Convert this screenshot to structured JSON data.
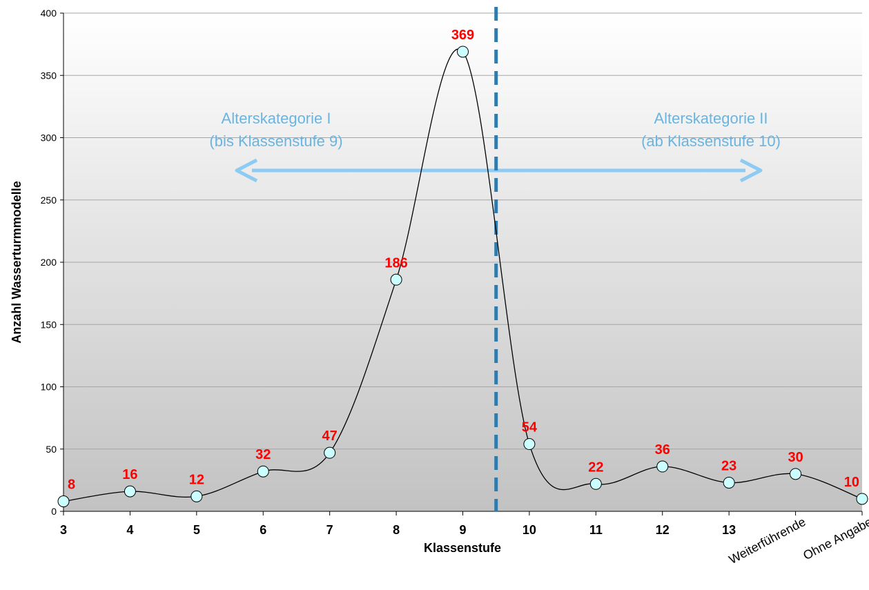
{
  "chart_data": {
    "type": "line",
    "smooth": true,
    "categories": [
      "3",
      "4",
      "5",
      "6",
      "7",
      "8",
      "9",
      "10",
      "11",
      "12",
      "13",
      "Weiterführende",
      "Ohne Angabe"
    ],
    "values": [
      8,
      16,
      12,
      32,
      47,
      186,
      369,
      54,
      22,
      36,
      23,
      30,
      10
    ],
    "data_labels": [
      "8",
      "16",
      "12",
      "32",
      "47",
      "186",
      "369",
      "54",
      "22",
      "36",
      "23",
      "30",
      "10"
    ],
    "xlabel": "Klassenstufe",
    "ylabel": "Anzahl Wasserturmmodelle",
    "ylim": [
      0,
      400
    ],
    "yticks": [
      0,
      50,
      100,
      150,
      200,
      250,
      300,
      350,
      400
    ],
    "ytick_labels": [
      "0",
      "50",
      "100",
      "150",
      "200",
      "250",
      "300",
      "350",
      "400"
    ],
    "grid": true,
    "divider_after_category": "9",
    "annotations": {
      "left": {
        "line1": "Alterskategorie I",
        "line2": "(bis Klassenstufe 9)"
      },
      "right": {
        "line1": "Alterskategorie II",
        "line2": "(ab Klassenstufe 10)"
      }
    },
    "colors": {
      "line": "#000000",
      "marker_fill": "#ccffff",
      "label": "#ff0000",
      "divider": "#2e7bac",
      "arrow": "#8ecbf2",
      "annotation": "#6ab4e0",
      "gridline": "#a6a6a6"
    }
  }
}
